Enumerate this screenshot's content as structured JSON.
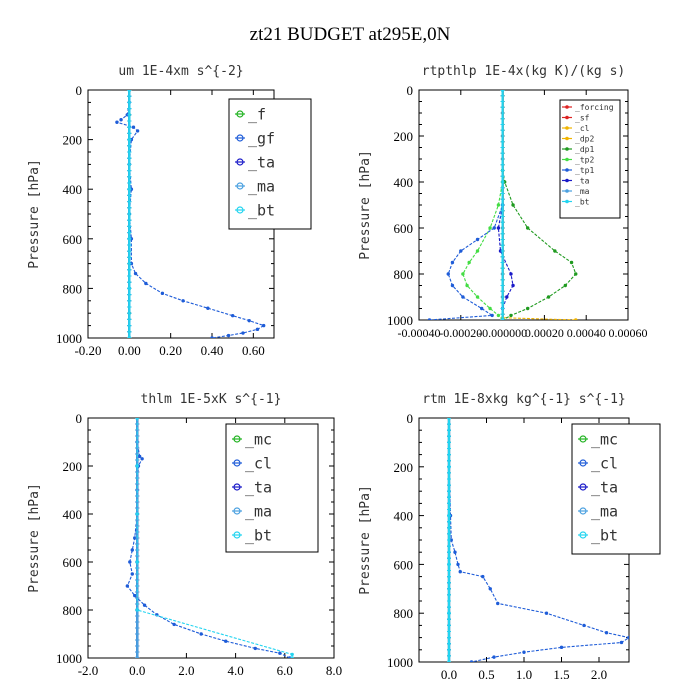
{
  "page_title": "zt21  BUDGET at295E,0N",
  "colors": {
    "green": "#22b322",
    "blue": "#1e5cd8",
    "cyan": "#22d4f0",
    "red": "#dd2222",
    "orange": "#f0b400",
    "darkgreen": "#1f9a1f",
    "navy": "#1a1ac8",
    "lightgreen": "#44dd44"
  },
  "chart_data": [
    {
      "id": "um",
      "type": "line",
      "title": "um   1E-4xm  s^{-2}",
      "ylabel": "Pressure [hPa]",
      "xlabel": "",
      "xlim": [
        -0.2,
        0.7
      ],
      "ylim": [
        1000,
        0
      ],
      "xticks": [
        -0.2,
        0.0,
        0.2,
        0.4,
        0.6
      ],
      "xtick_labels": [
        "-0.20",
        "0.00",
        "0.20",
        "0.40",
        "0.60"
      ],
      "yticks": [
        0,
        200,
        400,
        600,
        800,
        1000
      ],
      "ytick_labels": [
        "0",
        "200",
        "400",
        "600",
        "800",
        "1000"
      ],
      "legend": [
        "_f",
        "_gf",
        "_ta",
        "_ma",
        "_bt"
      ],
      "legend_position": "top-right",
      "series": [
        {
          "name": "_f",
          "color": "#22b322",
          "p": [
            0,
            100,
            200,
            300,
            400,
            500,
            600,
            700,
            800,
            900,
            1000
          ],
          "v": [
            0,
            0,
            0,
            0,
            0,
            0,
            0,
            0,
            0,
            0,
            0
          ]
        },
        {
          "name": "_gf",
          "color": "#1e5cd8",
          "p": [
            0,
            50,
            100,
            120,
            130,
            150,
            165,
            200,
            300,
            400,
            500,
            600,
            700,
            740,
            780,
            820,
            850,
            880,
            910,
            930,
            950,
            965,
            980,
            990,
            1000
          ],
          "v": [
            0,
            0,
            -0.01,
            -0.04,
            -0.06,
            0.02,
            0.04,
            0.01,
            0.0,
            0.01,
            0.0,
            0.01,
            0.01,
            0.03,
            0.08,
            0.16,
            0.26,
            0.38,
            0.5,
            0.58,
            0.65,
            0.62,
            0.55,
            0.48,
            0.4
          ]
        },
        {
          "name": "_ta",
          "color": "#1a1ac8",
          "p": [
            0,
            200,
            400,
            600,
            800,
            1000
          ],
          "v": [
            0,
            0,
            0,
            0,
            0,
            0
          ]
        },
        {
          "name": "_ma",
          "color": "#4aa0e0",
          "p": [
            0,
            200,
            400,
            600,
            800,
            1000
          ],
          "v": [
            0,
            0,
            0,
            0,
            0,
            0
          ]
        },
        {
          "name": "_bt",
          "color": "#22d4f0",
          "p": [
            0,
            200,
            400,
            600,
            800,
            1000
          ],
          "v": [
            0.0,
            0.0,
            0.0,
            0.0,
            0.0,
            0.0
          ]
        }
      ]
    },
    {
      "id": "rtpthlp",
      "type": "line",
      "title": "rtpthlp   1E-4x(kg K)/(kg s)",
      "ylabel": "Pressure [hPa]",
      "xlabel": "",
      "xlim": [
        -0.0004,
        0.0006
      ],
      "ylim": [
        1000,
        0
      ],
      "xticks": [
        -0.0004,
        -0.0002,
        0.0,
        0.0002,
        0.0004,
        0.0006
      ],
      "xtick_labels": [
        "-0.00040",
        "-0.00020",
        "-0.000000",
        "0.00020",
        "0.00040",
        "0.00060"
      ],
      "yticks": [
        0,
        200,
        400,
        600,
        800,
        1000
      ],
      "ytick_labels": [
        "0",
        "200",
        "400",
        "600",
        "800",
        "1000"
      ],
      "legend": [
        "_forcing",
        "_sf",
        "_cl",
        "_dp2",
        "_dp1",
        "_tp2",
        "_tp1",
        "_ta",
        "_ma",
        "_bt"
      ],
      "legend_position": "top-right",
      "series": [
        {
          "name": "_forcing",
          "color": "#dd2222",
          "p": [
            0,
            100,
            200,
            300,
            400,
            500,
            600,
            700,
            800,
            900,
            1000
          ],
          "v": [
            0,
            0,
            0,
            0,
            0,
            0,
            0,
            0,
            0,
            0,
            0
          ]
        },
        {
          "name": "_sf",
          "color": "#dd2222",
          "p": [
            0,
            1000
          ],
          "v": [
            0,
            0
          ]
        },
        {
          "name": "_cl",
          "color": "#f0b400",
          "p": [
            0,
            990,
            1000
          ],
          "v": [
            0,
            0,
            0.00035
          ]
        },
        {
          "name": "_dp2",
          "color": "#f0b400",
          "p": [
            0,
            1000
          ],
          "v": [
            0,
            0
          ]
        },
        {
          "name": "_dp1",
          "color": "#1f9a1f",
          "p": [
            0,
            350,
            400,
            500,
            600,
            700,
            750,
            800,
            850,
            900,
            950,
            980,
            1000
          ],
          "v": [
            0,
            0,
            1e-05,
            5e-05,
            0.00012,
            0.00025,
            0.00033,
            0.00035,
            0.0003,
            0.00022,
            0.00012,
            4e-05,
            0
          ]
        },
        {
          "name": "_tp2",
          "color": "#44dd44",
          "p": [
            0,
            400,
            500,
            600,
            700,
            750,
            800,
            850,
            900,
            950,
            980,
            1000
          ],
          "v": [
            0,
            0,
            -2e-05,
            -6e-05,
            -0.00012,
            -0.00016,
            -0.00019,
            -0.00017,
            -0.00012,
            -6e-05,
            -2e-05,
            0
          ]
        },
        {
          "name": "_tp1",
          "color": "#1e5cd8",
          "p": [
            0,
            500,
            600,
            650,
            700,
            750,
            800,
            850,
            900,
            950,
            980,
            1000
          ],
          "v": [
            0,
            0,
            -4e-05,
            -0.00012,
            -0.0002,
            -0.00024,
            -0.00026,
            -0.00024,
            -0.00019,
            -0.0001,
            -5e-05,
            -0.00035
          ]
        },
        {
          "name": "_ta",
          "color": "#1a1ac8",
          "p": [
            0,
            500,
            600,
            700,
            800,
            850,
            900,
            950,
            1000
          ],
          "v": [
            0,
            0,
            -2e-05,
            -1e-05,
            4e-05,
            5e-05,
            2e-05,
            0.0,
            0
          ]
        },
        {
          "name": "_ma",
          "color": "#4aa0e0",
          "p": [
            0,
            1000
          ],
          "v": [
            0,
            0
          ]
        },
        {
          "name": "_bt",
          "color": "#22d4f0",
          "p": [
            0,
            1000
          ],
          "v": [
            0,
            0
          ]
        }
      ]
    },
    {
      "id": "thlm",
      "type": "line",
      "title": "thlm   1E-5xK  s^{-1}",
      "ylabel": "Pressure [hPa]",
      "xlabel": "",
      "xlim": [
        -2.0,
        8.0
      ],
      "ylim": [
        1000,
        0
      ],
      "xticks": [
        -2.0,
        0.0,
        2.0,
        4.0,
        6.0,
        8.0
      ],
      "xtick_labels": [
        "-2.0",
        "0.0",
        "2.0",
        "4.0",
        "6.0",
        "8.0"
      ],
      "yticks": [
        0,
        200,
        400,
        600,
        800,
        1000
      ],
      "ytick_labels": [
        "0",
        "200",
        "400",
        "600",
        "800",
        "1000"
      ],
      "legend": [
        "_mc",
        "_cl",
        "_ta",
        "_ma",
        "_bt"
      ],
      "legend_position": "top-right",
      "series": [
        {
          "name": "_mc",
          "color": "#22b322",
          "p": [
            0,
            200,
            400,
            600,
            800,
            1000
          ],
          "v": [
            0,
            0,
            0,
            0,
            0,
            0
          ]
        },
        {
          "name": "_cl",
          "color": "#1e5cd8",
          "p": [
            0,
            100,
            160,
            170,
            200,
            300,
            400,
            500,
            550,
            600,
            650,
            700,
            740,
            780,
            820,
            860,
            900,
            930,
            960,
            980,
            1000
          ],
          "v": [
            0,
            0,
            0.1,
            0.2,
            0.05,
            0.0,
            0.0,
            -0.1,
            -0.2,
            -0.3,
            -0.2,
            -0.4,
            -0.1,
            0.3,
            0.8,
            1.5,
            2.6,
            3.6,
            4.8,
            5.8,
            6.2
          ]
        },
        {
          "name": "_ta",
          "color": "#1a1ac8",
          "p": [
            0,
            200,
            400,
            600,
            800,
            1000
          ],
          "v": [
            0,
            0,
            0,
            0,
            0,
            0
          ]
        },
        {
          "name": "_ma",
          "color": "#4aa0e0",
          "p": [
            0,
            200,
            400,
            600,
            800,
            1000
          ],
          "v": [
            0,
            0,
            0,
            0,
            0,
            0
          ]
        },
        {
          "name": "_bt",
          "color": "#22d4f0",
          "p": [
            0,
            200,
            400,
            600,
            800,
            985,
            1000
          ],
          "v": [
            0,
            0,
            0,
            0,
            0,
            6.3,
            6.3
          ]
        }
      ]
    },
    {
      "id": "rtm",
      "type": "line",
      "title": "rtm   1E-8xkg  kg^{-1}  s^{-1}",
      "ylabel": "Pressure [hPa]",
      "xlabel": "",
      "xlim": [
        -0.4,
        2.4
      ],
      "ylim": [
        1000,
        0
      ],
      "xticks": [
        0.0,
        0.5,
        1.0,
        1.5,
        2.0
      ],
      "xtick_labels": [
        "0.0",
        "0.5",
        "1.0",
        "1.5",
        "2.0"
      ],
      "yticks": [
        0,
        200,
        400,
        600,
        800,
        1000
      ],
      "ytick_labels": [
        "0",
        "200",
        "400",
        "600",
        "800",
        "1000"
      ],
      "legend": [
        "_mc",
        "_cl",
        "_ta",
        "_ma",
        "_bt"
      ],
      "legend_position": "top-right",
      "series": [
        {
          "name": "_mc",
          "color": "#22b322",
          "p": [
            0,
            200,
            400,
            600,
            800,
            1000
          ],
          "v": [
            0,
            0,
            0,
            0,
            0,
            0
          ]
        },
        {
          "name": "_cl",
          "color": "#1e5cd8",
          "p": [
            0,
            200,
            400,
            500,
            550,
            600,
            630,
            650,
            700,
            760,
            800,
            850,
            880,
            900,
            920,
            940,
            960,
            980,
            1000
          ],
          "v": [
            0,
            0,
            0.02,
            0.03,
            0.08,
            0.12,
            0.15,
            0.45,
            0.55,
            0.65,
            1.3,
            1.8,
            2.1,
            2.4,
            2.3,
            1.5,
            1.0,
            0.6,
            0.3
          ]
        },
        {
          "name": "_ta",
          "color": "#1a1ac8",
          "p": [
            0,
            200,
            400,
            600,
            800,
            1000
          ],
          "v": [
            0,
            0,
            0,
            0,
            0,
            0
          ]
        },
        {
          "name": "_ma",
          "color": "#4aa0e0",
          "p": [
            0,
            200,
            400,
            600,
            800,
            1000
          ],
          "v": [
            0,
            0,
            0,
            0,
            0,
            0
          ]
        },
        {
          "name": "_bt",
          "color": "#22d4f0",
          "p": [
            0,
            200,
            400,
            600,
            800,
            1000
          ],
          "v": [
            0,
            0,
            0,
            0,
            0,
            0
          ]
        }
      ]
    }
  ]
}
